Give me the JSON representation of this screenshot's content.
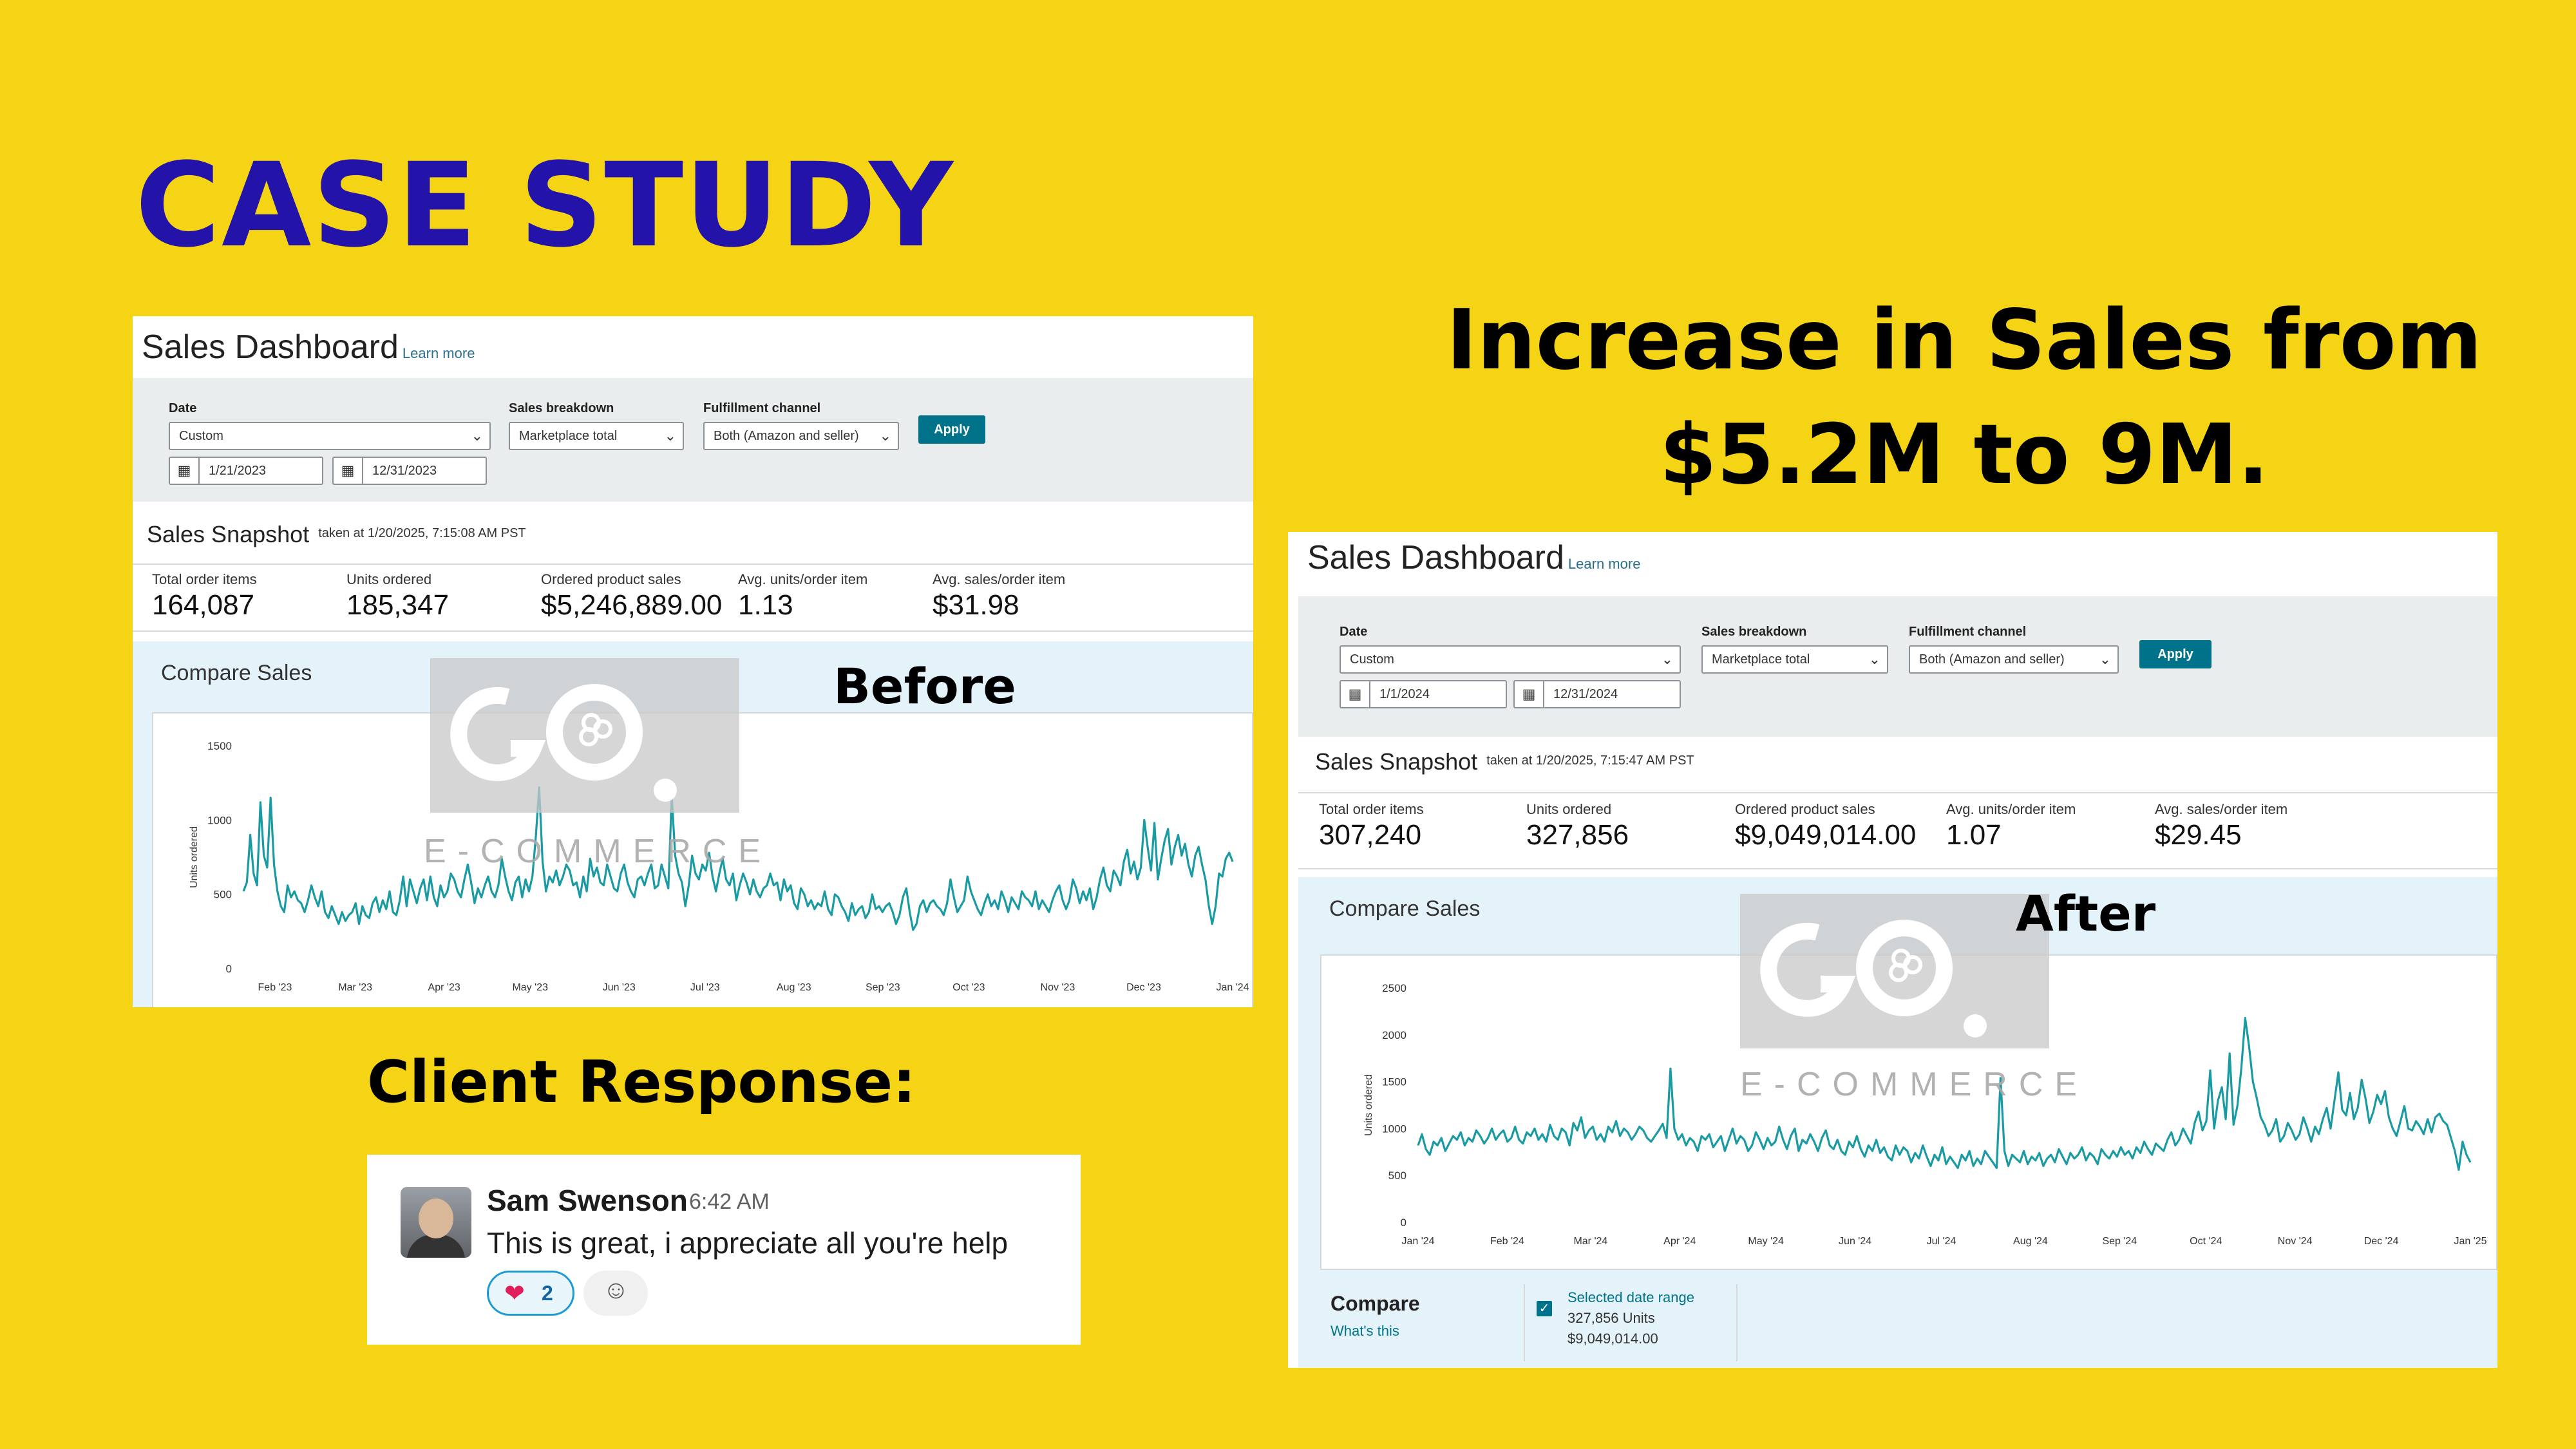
{
  "heading": "CASE STUDY",
  "headline": "Increase in Sales from $5.2M to 9M.",
  "client_heading": "Client Response:",
  "colors": {
    "background": "#F5D415",
    "heading": "#2413A8",
    "accent": "#00738A",
    "series": "#1A9BA3"
  },
  "watermark": {
    "logo": "GO.",
    "text": "E-COMMERCE"
  },
  "before": {
    "label": "Before",
    "title": "Sales Dashboard",
    "learn_more": "Learn more",
    "filters": {
      "date_label": "Date",
      "date_value": "Custom",
      "start_date": "1/21/2023",
      "end_date": "12/31/2023",
      "breakdown_label": "Sales breakdown",
      "breakdown_value": "Marketplace total",
      "fulfillment_label": "Fulfillment channel",
      "fulfillment_value": "Both (Amazon and seller)",
      "apply": "Apply"
    },
    "snapshot_title": "Sales Snapshot",
    "snapshot_taken": "taken at 1/20/2025, 7:15:08 AM PST",
    "metrics": [
      {
        "label": "Total order items",
        "value": "164,087"
      },
      {
        "label": "Units ordered",
        "value": "185,347"
      },
      {
        "label": "Ordered product sales",
        "value": "$5,246,889.00"
      },
      {
        "label": "Avg. units/order item",
        "value": "1.13"
      },
      {
        "label": "Avg. sales/order item",
        "value": "$31.98"
      }
    ],
    "compare_title": "Compare Sales"
  },
  "after": {
    "label": "After",
    "title": "Sales Dashboard",
    "learn_more": "Learn more",
    "filters": {
      "date_label": "Date",
      "date_value": "Custom",
      "start_date": "1/1/2024",
      "end_date": "12/31/2024",
      "breakdown_label": "Sales breakdown",
      "breakdown_value": "Marketplace total",
      "fulfillment_label": "Fulfillment channel",
      "fulfillment_value": "Both (Amazon and seller)",
      "apply": "Apply"
    },
    "snapshot_title": "Sales Snapshot",
    "snapshot_taken": "taken at 1/20/2025, 7:15:47 AM PST",
    "metrics": [
      {
        "label": "Total order items",
        "value": "307,240"
      },
      {
        "label": "Units ordered",
        "value": "327,856"
      },
      {
        "label": "Ordered product sales",
        "value": "$9,049,014.00"
      },
      {
        "label": "Avg. units/order item",
        "value": "1.07"
      },
      {
        "label": "Avg. sales/order item",
        "value": "$29.45"
      }
    ],
    "compare_title": "Compare Sales",
    "compare_footer": {
      "title": "Compare",
      "link": "What's this",
      "series_label": "Selected date range",
      "units": "327,856 Units",
      "sales": "$9,049,014.00"
    }
  },
  "chat": {
    "name": "Sam Swenson",
    "time": "6:42 AM",
    "message": "This is great, i appreciate all you're help",
    "reaction_count": "2",
    "reaction_icon": "heart-icon",
    "add_reaction_icon": "add-reaction-icon"
  },
  "chart_data": [
    {
      "type": "line",
      "ylabel": "Units ordered",
      "xlabel": "",
      "ylim": [
        0,
        1500
      ],
      "yticks": [
        0,
        500,
        1000,
        1500
      ],
      "xticks": [
        "Feb '23",
        "Mar '23",
        "Apr '23",
        "May '23",
        "Jun '23",
        "Jul '23",
        "Aug '23",
        "Sep '23",
        "Oct '23",
        "Nov '23",
        "Dec '23",
        "Jan '24"
      ],
      "x_start": "2023-01-21",
      "x_end": "2024-01-01",
      "series": [
        {
          "values": [
            520,
            580,
            900,
            640,
            560,
            1120,
            760,
            680,
            1150,
            700,
            520,
            420,
            380,
            560,
            480,
            520,
            460,
            440,
            380,
            460,
            560,
            480,
            420,
            520,
            380,
            340,
            420,
            360,
            300,
            380,
            320,
            360,
            380,
            440,
            300,
            420,
            360,
            340,
            440,
            480,
            380,
            460,
            400,
            520,
            380,
            360,
            460,
            620,
            420,
            600,
            520,
            440,
            540,
            600,
            460,
            620,
            480,
            420,
            560,
            480,
            520,
            640,
            600,
            520,
            480,
            600,
            700,
            580,
            440,
            540,
            480,
            560,
            620,
            520,
            480,
            560,
            740,
            620,
            520,
            460,
            580,
            620,
            480,
            600,
            520,
            620,
            880,
            1220,
            720,
            520,
            620,
            580,
            660,
            560,
            620,
            700,
            660,
            560,
            580,
            480,
            620,
            520,
            740,
            620,
            680,
            580,
            560,
            700,
            620,
            540,
            520,
            640,
            700,
            580,
            520,
            480,
            600,
            620,
            560,
            640,
            700,
            540,
            560,
            700,
            620,
            540,
            1160,
            760,
            640,
            580,
            420,
            560,
            760,
            640,
            600,
            700,
            660,
            780,
            620,
            520,
            640,
            740,
            600,
            560,
            640,
            460,
            560,
            640,
            580,
            500,
            600,
            520,
            480,
            540,
            560,
            640,
            560,
            580,
            460,
            600,
            520,
            560,
            440,
            400,
            540,
            500,
            420,
            460,
            400,
            440,
            420,
            520,
            400,
            360,
            500,
            480,
            420,
            380,
            320,
            440,
            360,
            400,
            420,
            340,
            380,
            500,
            400,
            420,
            380,
            420,
            440,
            380,
            300,
            360,
            480,
            540,
            380,
            260,
            300,
            420,
            460,
            380,
            440,
            460,
            420,
            400,
            360,
            440,
            600,
            480,
            380,
            420,
            460,
            620,
            520,
            460,
            400,
            360,
            440,
            500,
            420,
            460,
            400,
            520,
            460,
            380,
            480,
            440,
            400,
            520,
            480,
            460,
            420,
            520,
            400,
            460,
            420,
            380,
            460,
            520,
            560,
            460,
            400,
            460,
            600,
            540,
            440,
            520,
            460,
            540,
            400,
            480,
            600,
            680,
            560,
            520,
            660,
            620,
            560,
            720,
            800,
            640,
            720,
            600,
            680,
            1000,
            820,
            660,
            980,
            600,
            740,
            860,
            940,
            700,
            820,
            900,
            760,
            840,
            700,
            620,
            760,
            820,
            700,
            600,
            420,
            300,
            420,
            640,
            620,
            740,
            780,
            720
          ]
        }
      ]
    },
    {
      "type": "line",
      "ylabel": "Units ordered",
      "xlabel": "",
      "ylim": [
        0,
        2500
      ],
      "yticks": [
        0,
        500,
        1000,
        1500,
        2000,
        2500
      ],
      "xticks": [
        "Jan '24",
        "Feb '24",
        "Mar '24",
        "Apr '24",
        "May '24",
        "Jun '24",
        "Jul '24",
        "Aug '24",
        "Sep '24",
        "Oct '24",
        "Nov '24",
        "Dec '24",
        "Jan '25"
      ],
      "x_start": "2024-01-01",
      "x_end": "2025-01-01",
      "series": [
        {
          "values": [
            820,
            940,
            780,
            720,
            860,
            820,
            900,
            760,
            840,
            920,
            880,
            960,
            820,
            900,
            860,
            980,
            920,
            840,
            900,
            1000,
            880,
            940,
            980,
            860,
            900,
            1020,
            880,
            840,
            960,
            920,
            1000,
            880,
            940,
            860,
            1040,
            920,
            880,
            1000,
            960,
            820,
            1060,
            980,
            1120,
            900,
            980,
            1020,
            880,
            940,
            860,
            1020,
            960,
            1080,
            920,
            1000,
            960,
            880,
            940,
            1020,
            980,
            900,
            860,
            920,
            980,
            1050,
            900,
            1640,
            1000,
            880,
            940,
            820,
            900,
            860,
            760,
            920,
            880,
            940,
            800,
            860,
            920,
            760,
            880,
            1000,
            840,
            920,
            880,
            760,
            820,
            960,
            880,
            780,
            900,
            820,
            860,
            1020,
            880,
            780,
            920,
            1000,
            760,
            880,
            840,
            940,
            860,
            760,
            900,
            980,
            820,
            780,
            880,
            760,
            720,
            860,
            800,
            920,
            780,
            700,
            820,
            760,
            880,
            740,
            800,
            700,
            660,
            820,
            720,
            800,
            760,
            640,
            740,
            680,
            820,
            700,
            600,
            720,
            660,
            800,
            620,
            700,
            640,
            580,
            720,
            660,
            760,
            600,
            680,
            620,
            760,
            700,
            640,
            580,
            1540,
            760,
            600,
            720,
            680,
            640,
            760,
            620,
            700,
            660,
            740,
            600,
            680,
            720,
            640,
            780,
            700,
            620,
            740,
            680,
            720,
            800,
            660,
            740,
            700,
            620,
            780,
            720,
            680,
            760,
            700,
            800,
            720,
            760,
            680,
            800,
            740,
            860,
            780,
            720,
            840,
            800,
            760,
            880,
            960,
            820,
            880,
            1000,
            920,
            840,
            1060,
            1180,
            980,
            1080,
            1620,
            1000,
            1300,
            1440,
            1100,
            1800,
            1040,
            1240,
            1640,
            2180,
            1880,
            1500,
            1320,
            1120,
            1040,
            920,
            980,
            1100,
            860,
            920,
            1060,
            980,
            880,
            940,
            1120,
            1000,
            860,
            1020,
            940,
            1100,
            1220,
            1000,
            1300,
            1600,
            1200,
            1140,
            1380,
            1100,
            1220,
            1520,
            1320,
            1060,
            1180,
            1360,
            1260,
            1400,
            1120,
            1000,
            920,
            1080,
            1240,
            1000,
            980,
            1080,
            1020,
            940,
            1100,
            960,
            1120,
            1160,
            1080,
            1040,
            900,
            760,
            560,
            860,
            720,
            640
          ]
        }
      ]
    }
  ]
}
